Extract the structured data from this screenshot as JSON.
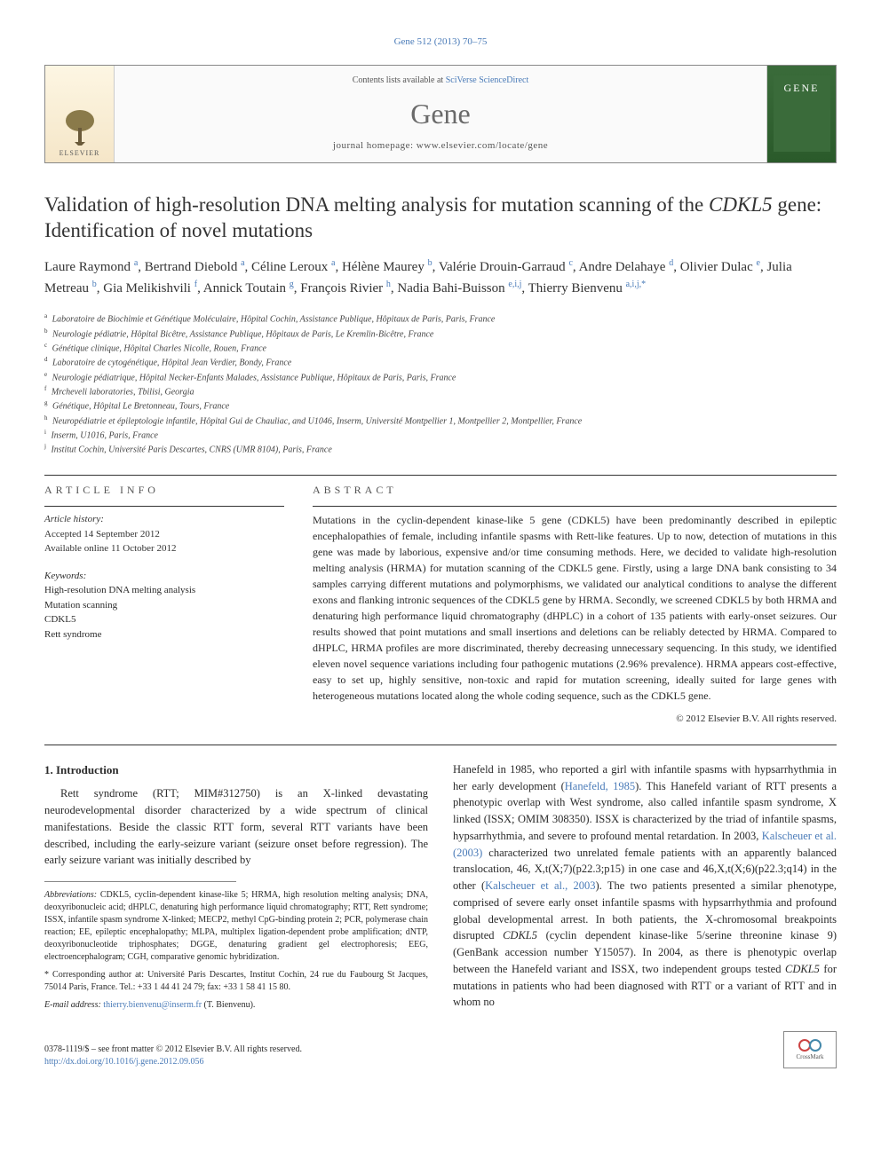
{
  "page_header": "Gene 512 (2013) 70–75",
  "masthead": {
    "contents_prefix": "Contents lists available at ",
    "contents_link": "SciVerse ScienceDirect",
    "journal": "Gene",
    "homepage": "journal homepage: www.elsevier.com/locate/gene",
    "publisher_label": "ELSEVIER",
    "cover_label": "GENE"
  },
  "title_part1": "Validation of high-resolution DNA melting analysis for mutation scanning of the ",
  "title_italic": "CDKL5",
  "title_part2": " gene: Identification of novel mutations",
  "authors_line": "Laure Raymond <sup>a</sup>, Bertrand Diebold <sup>a</sup>, Céline Leroux <sup>a</sup>, Hélène Maurey <sup>b</sup>, Valérie Drouin-Garraud <sup>c</sup>, Andre Delahaye <sup>d</sup>, Olivier Dulac <sup>e</sup>, Julia Metreau <sup>b</sup>, Gia Melikishvili <sup>f</sup>, Annick Toutain <sup>g</sup>, François Rivier <sup>h</sup>, Nadia Bahi-Buisson <sup>e,i,j</sup>, Thierry Bienvenu <sup>a,i,j,*</sup>",
  "affiliations": [
    {
      "sup": "a",
      "text": "Laboratoire de Biochimie et Génétique Moléculaire, Hôpital Cochin, Assistance Publique, Hôpitaux de Paris, Paris, France"
    },
    {
      "sup": "b",
      "text": "Neurologie pédiatrie, Hôpital Bicêtre, Assistance Publique, Hôpitaux de Paris, Le Kremlin-Bicêtre, France"
    },
    {
      "sup": "c",
      "text": "Génétique clinique, Hôpital Charles Nicolle, Rouen, France"
    },
    {
      "sup": "d",
      "text": "Laboratoire de cytogénétique, Hôpital Jean Verdier, Bondy, France"
    },
    {
      "sup": "e",
      "text": "Neurologie pédiatrique, Hôpital Necker-Enfants Malades, Assistance Publique, Hôpitaux de Paris, Paris, France"
    },
    {
      "sup": "f",
      "text": "Mrcheveli laboratories, Tbilisi, Georgia"
    },
    {
      "sup": "g",
      "text": "Génétique, Hôpital Le Bretonneau, Tours, France"
    },
    {
      "sup": "h",
      "text": "Neuropédiatrie et épileptologie infantile, Hôpital Gui de Chauliac, and U1046, Inserm, Université Montpellier 1, Montpellier 2, Montpellier, France"
    },
    {
      "sup": "i",
      "text": "Inserm, U1016, Paris, France"
    },
    {
      "sup": "j",
      "text": "Institut Cochin, Université Paris Descartes, CNRS (UMR 8104), Paris, France"
    }
  ],
  "article_info": {
    "heading": "ARTICLE INFO",
    "history_label": "Article history:",
    "accepted": "Accepted 14 September 2012",
    "online": "Available online 11 October 2012",
    "keywords_label": "Keywords:",
    "keywords": [
      "High-resolution DNA melting analysis",
      "Mutation scanning",
      "CDKL5",
      "Rett syndrome"
    ]
  },
  "abstract": {
    "heading": "ABSTRACT",
    "text": "Mutations in the cyclin-dependent kinase-like 5 gene (CDKL5) have been predominantly described in epileptic encephalopathies of female, including infantile spasms with Rett-like features. Up to now, detection of mutations in this gene was made by laborious, expensive and/or time consuming methods. Here, we decided to validate high-resolution melting analysis (HRMA) for mutation scanning of the CDKL5 gene. Firstly, using a large DNA bank consisting to 34 samples carrying different mutations and polymorphisms, we validated our analytical conditions to analyse the different exons and flanking intronic sequences of the CDKL5 gene by HRMA. Secondly, we screened CDKL5 by both HRMA and denaturing high performance liquid chromatography (dHPLC) in a cohort of 135 patients with early-onset seizures. Our results showed that point mutations and small insertions and deletions can be reliably detected by HRMA. Compared to dHPLC, HRMA profiles are more discriminated, thereby decreasing unnecessary sequencing. In this study, we identified eleven novel sequence variations including four pathogenic mutations (2.96% prevalence). HRMA appears cost-effective, easy to set up, highly sensitive, non-toxic and rapid for mutation screening, ideally suited for large genes with heterogeneous mutations located along the whole coding sequence, such as the CDKL5 gene.",
    "copyright": "© 2012 Elsevier B.V. All rights reserved."
  },
  "intro": {
    "heading": "1. Introduction",
    "p1": "Rett syndrome (RTT; MIM#312750) is an X-linked devastating neurodevelopmental disorder characterized by a wide spectrum of clinical manifestations. Beside the classic RTT form, several RTT variants have been described, including the early-seizure variant (seizure onset before regression). The early seizure variant was initially described by",
    "p2_html": "Hanefeld in 1985, who reported a girl with infantile spasms with hypsarrhythmia in her early development (<a href='#' data-name='citation-link' data-interactable='true'>Hanefeld, 1985</a>). This Hanefeld variant of RTT presents a phenotypic overlap with West syndrome, also called infantile spasm syndrome, X linked (ISSX; OMIM 308350). ISSX is characterized by the triad of infantile spasms, hypsarrhythmia, and severe to profound mental retardation. In 2003, <a href='#' data-name='citation-link' data-interactable='true'>Kalscheuer et al. (2003)</a> characterized two unrelated female patients with an apparently balanced translocation, 46, X,t(X;7)(p22.3;p15) in one case and 46,X,t(X;6)(p22.3;q14) in the other (<a href='#' data-name='citation-link' data-interactable='true'>Kalscheuer et al., 2003</a>). The two patients presented a similar phenotype, comprised of severe early onset infantile spasms with hypsarrhythmia and profound global developmental arrest. In both patients, the X-chromosomal breakpoints disrupted <em>CDKL5</em> (cyclin dependent kinase-like 5/serine threonine kinase 9) (GenBank accession number Y15057). In 2004, as there is phenotypic overlap between the Hanefeld variant and ISSX, two independent groups tested <em>CDKL5</em> for mutations in patients who had been diagnosed with RTT or a variant of RTT and in whom no"
  },
  "footnotes": {
    "abbrev_label": "Abbreviations:",
    "abbrev_text": " CDKL5, cyclin-dependent kinase-like 5; HRMA, high resolution melting analysis; DNA, deoxyribonucleic acid; dHPLC, denaturing high performance liquid chromatography; RTT, Rett syndrome; ISSX, infantile spasm syndrome X-linked; MECP2, methyl CpG-binding protein 2; PCR, polymerase chain reaction; EE, epileptic encephalopathy; MLPA, multiplex ligation-dependent probe amplification; dNTP, deoxyribonucleotide triphosphates; DGGE, denaturing gradient gel electrophoresis; EEG, electroencephalogram; CGH, comparative genomic hybridization.",
    "corresponding": "* Corresponding author at: Université Paris Descartes, Institut Cochin, 24 rue du Faubourg St Jacques, 75014 Paris, France. Tel.: +33 1 44 41 24 79; fax: +33 1 58 41 15 80.",
    "email_label": "E-mail address: ",
    "email": "thierry.bienvenu@inserm.fr",
    "email_suffix": " (T. Bienvenu)."
  },
  "footer": {
    "issn_line": "0378-1119/$ – see front matter © 2012 Elsevier B.V. All rights reserved.",
    "doi": "http://dx.doi.org/10.1016/j.gene.2012.09.056",
    "crossmark_label": "CrossMark"
  },
  "colors": {
    "link": "#4a7bb8",
    "text": "#2a2a2a",
    "border": "#333333"
  }
}
